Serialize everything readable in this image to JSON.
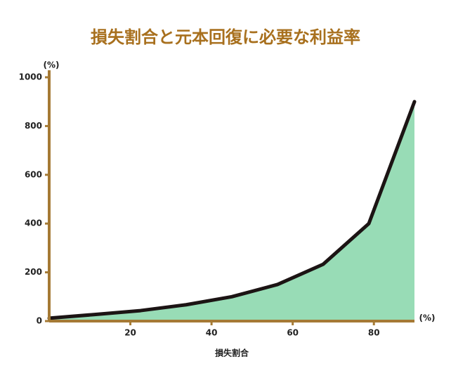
{
  "chart_data": {
    "type": "area",
    "title": "損失割合と元本回復に必要な利益率",
    "x_label": "損失割合",
    "y_unit": "(%)",
    "x_unit": "(%)",
    "x": [
      0,
      11.25,
      22.5,
      33.75,
      45,
      56.25,
      67.5,
      78.75,
      90
    ],
    "values": [
      12,
      27,
      43,
      67,
      100,
      150,
      233,
      400,
      900
    ],
    "line_color": "#1c1414",
    "fill_color": "#98dcb6",
    "axis_color": "#a57a35",
    "xlim": [
      0,
      90
    ],
    "ylim": [
      0,
      1000
    ],
    "xticks": [
      20,
      40,
      60,
      80
    ],
    "yticks": [
      0,
      200,
      400,
      600,
      800,
      1000
    ]
  }
}
